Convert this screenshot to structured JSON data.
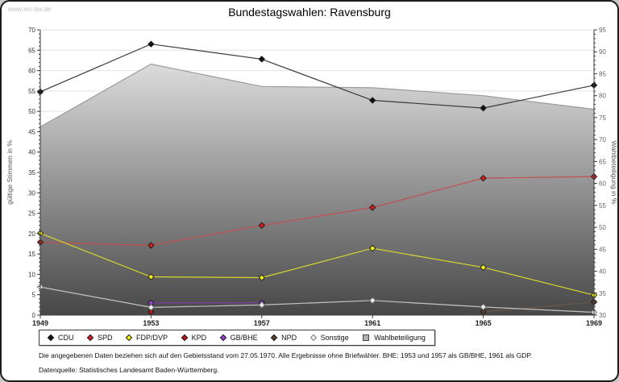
{
  "header": {
    "watermark": "www.leo-bw.de",
    "title": "Bundestagswahlen: Ravensburg"
  },
  "chart_data": {
    "type": "line",
    "title": "Bundestagswahlen: Ravensburg",
    "x": [
      1949,
      1953,
      1957,
      1961,
      1965,
      1969
    ],
    "left_axis": {
      "label": "gültige Stimmen in %",
      "min": 0,
      "max": 70,
      "major_tick": 5,
      "minor_tick": 1
    },
    "right_axis": {
      "label": "Wahlbeteiligung in %",
      "min": 30,
      "max": 95,
      "major_tick": 5,
      "minor_tick": 1
    },
    "grid": true,
    "legend_position": "bottom",
    "series": [
      {
        "name": "CDU",
        "axis": "left",
        "line_color": "#3a3a3a",
        "marker_color": "#111111",
        "values": [
          54.8,
          66.5,
          62.8,
          52.7,
          50.8,
          56.4
        ]
      },
      {
        "name": "SPD",
        "axis": "left",
        "line_color": "#c24f4f",
        "marker_color": "#d42020",
        "values": [
          17.9,
          17.1,
          22.0,
          26.4,
          33.6,
          34.0
        ]
      },
      {
        "name": "FDP/DVP",
        "axis": "left",
        "line_color": "#d6d62e",
        "marker_color": "#f5f211",
        "values": [
          20.1,
          9.4,
          9.2,
          16.4,
          11.7,
          4.9
        ]
      },
      {
        "name": "KPD",
        "axis": "left",
        "line_color": "#b01818",
        "marker_color": "#c01515",
        "values": [
          null,
          0.8,
          null,
          null,
          null,
          null
        ]
      },
      {
        "name": "GB/BHE",
        "axis": "left",
        "line_color": "#8a3bb5",
        "marker_color": "#9a3fd0",
        "values": [
          null,
          3.0,
          3.0,
          null,
          null,
          null
        ]
      },
      {
        "name": "NPD",
        "axis": "left",
        "line_color": "#6e5647",
        "marker_color": "#5c4031",
        "values": [
          null,
          null,
          null,
          null,
          0.8,
          3.2
        ]
      },
      {
        "name": "Sonstige",
        "axis": "left",
        "line_color": "#c3c3c3",
        "marker_color": "#ededed",
        "marker_stroke": "#777777",
        "values": [
          6.9,
          1.9,
          2.5,
          3.6,
          2.0,
          0.7
        ]
      }
    ],
    "area_series": {
      "name": "Wahlbeteiligung",
      "axis": "right",
      "stroke": "#9a9a9a",
      "fill_top": "#f0f0f0",
      "fill_bottom": "#474747",
      "values": [
        72.9,
        87.2,
        82.1,
        81.8,
        80.0,
        76.9
      ]
    }
  },
  "legend": {
    "items": [
      {
        "label": "CDU",
        "marker": "diamond",
        "color": "#111111"
      },
      {
        "label": "SPD",
        "marker": "diamond",
        "color": "#d42020"
      },
      {
        "label": "FDP/DVP",
        "marker": "diamond",
        "color": "#f5f211"
      },
      {
        "label": "KPD",
        "marker": "diamond",
        "color": "#c01515"
      },
      {
        "label": "GB/BHE",
        "marker": "diamond",
        "color": "#9a3fd0"
      },
      {
        "label": "NPD",
        "marker": "diamond",
        "color": "#5c4031"
      },
      {
        "label": "Sonstige",
        "marker": "diamond",
        "color": "#ededed",
        "stroke": "#777777"
      },
      {
        "label": "Wahlbeteiligung",
        "marker": "square",
        "color": "#b0b0b0"
      }
    ]
  },
  "footnotes": {
    "line1": "Die angegebenen Daten beziehen sich auf den Gebietsstand vom 27.05.1970. Alle Ergebnisse ohne Briefwähler. BHE: 1953 und 1957 als GB/BHE, 1961 als GDP.",
    "line2": "Datenquelle: Statistisches Landesamt Baden-Württemberg."
  }
}
